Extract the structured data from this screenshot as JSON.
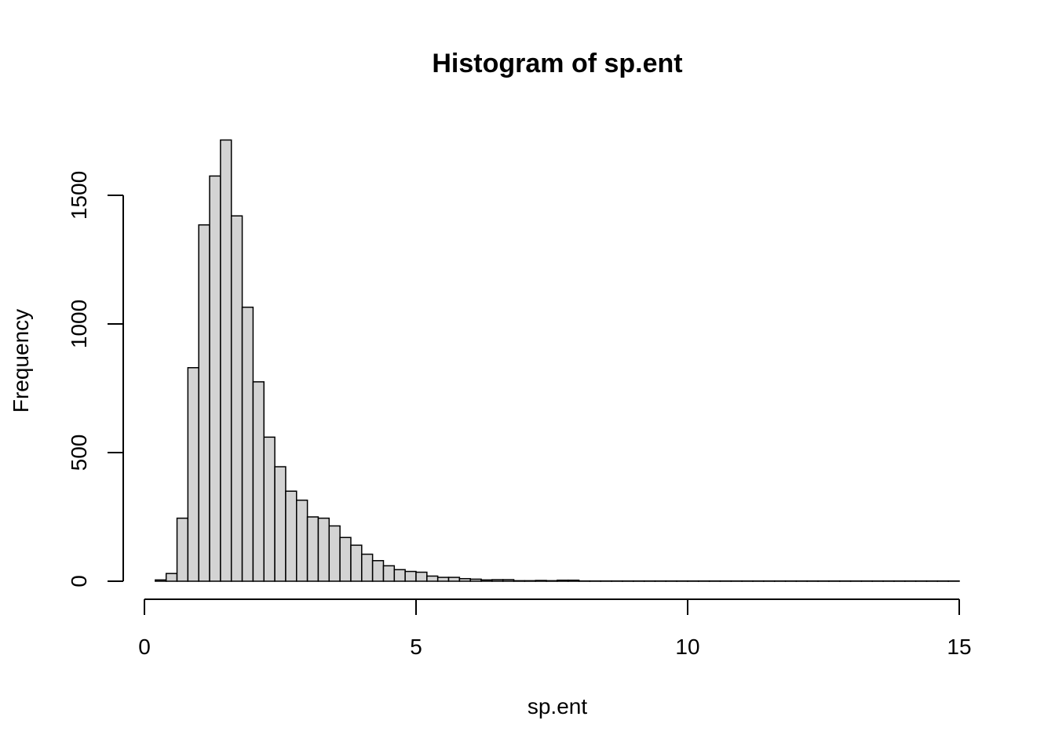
{
  "chart_data": {
    "type": "bar",
    "title": "Histogram of sp.ent",
    "xlabel": "sp.ent",
    "ylabel": "Frequency",
    "xlim": [
      0,
      15
    ],
    "ylim": [
      0,
      1720
    ],
    "x_ticks": [
      0,
      5,
      10,
      15
    ],
    "x_tick_labels": [
      "0",
      "5",
      "10",
      "15"
    ],
    "y_ticks": [
      0,
      500,
      1000,
      1500
    ],
    "y_tick_labels": [
      "0",
      "500",
      "1000",
      "1500"
    ],
    "bin_width": 0.2,
    "bin_start": 0.2,
    "bin_end": 15.0,
    "values": [
      5,
      30,
      245,
      830,
      1385,
      1575,
      1715,
      1420,
      1065,
      775,
      560,
      445,
      350,
      315,
      250,
      245,
      215,
      170,
      140,
      105,
      80,
      60,
      45,
      38,
      35,
      20,
      15,
      15,
      10,
      8,
      5,
      6,
      6,
      2,
      2,
      3,
      2,
      4,
      4,
      1,
      1,
      1,
      1,
      1,
      1,
      1,
      1,
      1,
      1,
      1,
      1,
      1,
      1,
      1,
      1,
      1,
      1,
      1,
      1,
      1,
      1,
      1,
      1,
      1,
      1,
      1,
      1,
      1,
      1,
      1,
      1,
      1,
      1,
      1
    ],
    "bar_color": "#d3d3d3",
    "edge_color": "#000000",
    "grid": false,
    "legend": "none"
  }
}
